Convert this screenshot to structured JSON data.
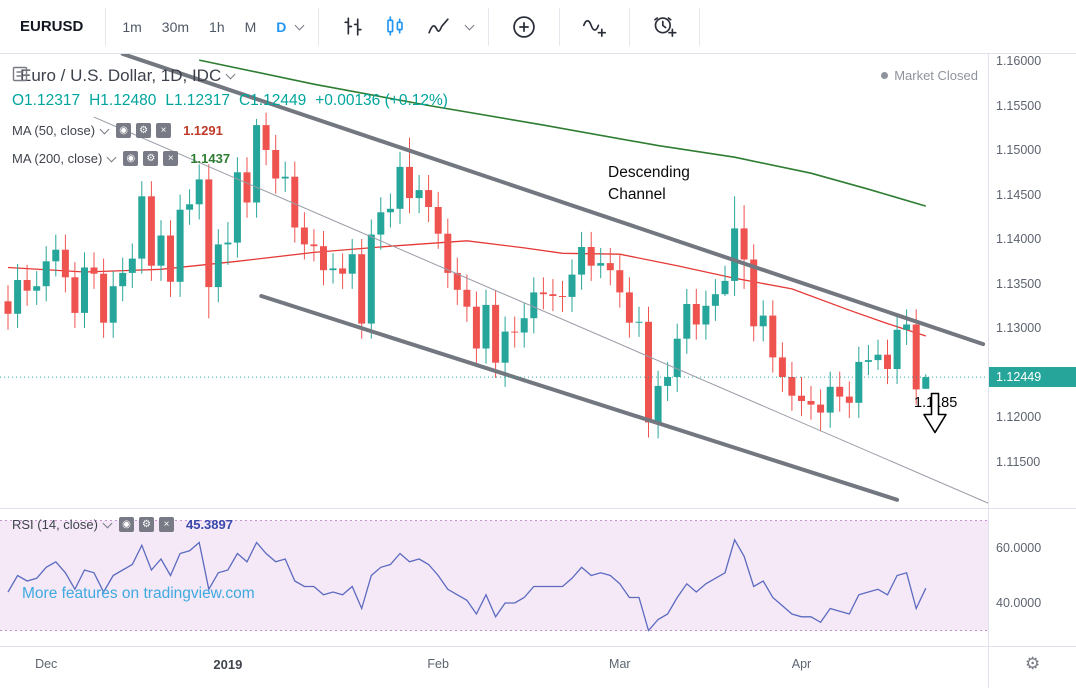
{
  "toolbar": {
    "symbol": "EURUSD",
    "intervals": [
      {
        "label": "1m"
      },
      {
        "label": "30m"
      },
      {
        "label": "1h"
      },
      {
        "label": "M"
      },
      {
        "label": "D",
        "active": true
      }
    ]
  },
  "legend": {
    "title": "Euro / U.S. Dollar, 1D, IDC",
    "ohlc": {
      "o": "O1.12317",
      "h": "H1.12480",
      "l": "L1.12317",
      "c": "C1.12449",
      "chg": "+0.00136 (+0.12%)"
    },
    "ma50": {
      "label": "MA (50, close)",
      "value": "1.1291"
    },
    "ma200": {
      "label": "MA (200, close)",
      "value": "1.1437"
    }
  },
  "status": {
    "market_closed": "Market Closed"
  },
  "annotations": {
    "channel": "Descending\nChannel",
    "target": "1.1185"
  },
  "watermark": "More features on tradingview.com",
  "rsi_legend": {
    "label": "RSI (14, close)",
    "value": "45.3897"
  },
  "icons": {
    "eye": "◉",
    "gear": "⚙",
    "close": "×",
    "settings_gear": "⚙"
  },
  "colors": {
    "up": "#26a69a",
    "down": "#ef5350",
    "ohlc_text": "#00a59d",
    "ma50": "#e53935",
    "ma200": "#2e7d32",
    "channel": "#73777f",
    "trendline": "#989ca6",
    "rsi": "#5c6bc0",
    "rsi_band": "rgba(156,39,176,0.10)",
    "rsi_level": "rgba(156,39,176,0.5)",
    "accent": "#2196f3",
    "tag_bg": "#26a69a"
  },
  "chart_data": {
    "type": "candlestick",
    "symbol": "EURUSD",
    "title": "Euro / U.S. Dollar, 1D, IDC",
    "interval": "1D",
    "price_ticks": [
      "1.16000",
      "1.15500",
      "1.15000",
      "1.14500",
      "1.14000",
      "1.13500",
      "1.13000",
      "1.12000",
      "1.11500"
    ],
    "current_price": 1.12449,
    "current_price_label": "1.12449",
    "price_range": [
      1.1098,
      1.1608
    ],
    "time_labels": [
      {
        "label": "Dec",
        "i": 4
      },
      {
        "label": "2019",
        "i": 23,
        "major": true
      },
      {
        "label": "Feb",
        "i": 45
      },
      {
        "label": "Mar",
        "i": 64
      },
      {
        "label": "Apr",
        "i": 83
      }
    ],
    "candles": [
      [
        1.133,
        1.1348,
        1.1298,
        1.1316
      ],
      [
        1.1316,
        1.1372,
        1.13,
        1.1354
      ],
      [
        1.1354,
        1.1371,
        1.1325,
        1.1342
      ],
      [
        1.1342,
        1.1364,
        1.1326,
        1.1347
      ],
      [
        1.1347,
        1.1392,
        1.133,
        1.1375
      ],
      [
        1.1375,
        1.1405,
        1.1358,
        1.1388
      ],
      [
        1.1388,
        1.1405,
        1.134,
        1.1357
      ],
      [
        1.1357,
        1.1374,
        1.13,
        1.1317
      ],
      [
        1.1317,
        1.1385,
        1.13,
        1.1368
      ],
      [
        1.1368,
        1.1385,
        1.1344,
        1.1361
      ],
      [
        1.1361,
        1.1378,
        1.1289,
        1.1306
      ],
      [
        1.1306,
        1.1364,
        1.1289,
        1.1347
      ],
      [
        1.1347,
        1.1379,
        1.133,
        1.1362
      ],
      [
        1.1362,
        1.1395,
        1.1345,
        1.1378
      ],
      [
        1.1378,
        1.1465,
        1.1361,
        1.1448
      ],
      [
        1.1448,
        1.1465,
        1.1353,
        1.137
      ],
      [
        1.137,
        1.1421,
        1.1353,
        1.1404
      ],
      [
        1.1404,
        1.1421,
        1.1335,
        1.1352
      ],
      [
        1.1352,
        1.145,
        1.1335,
        1.1433
      ],
      [
        1.1433,
        1.1456,
        1.1416,
        1.1439
      ],
      [
        1.1439,
        1.1484,
        1.1422,
        1.1467
      ],
      [
        1.1467,
        1.1484,
        1.1311,
        1.1346
      ],
      [
        1.1346,
        1.1411,
        1.1329,
        1.1394
      ],
      [
        1.1394,
        1.1419,
        1.1371,
        1.1396
      ],
      [
        1.1396,
        1.1492,
        1.1379,
        1.1475
      ],
      [
        1.1475,
        1.1492,
        1.1424,
        1.1441
      ],
      [
        1.1441,
        1.1535,
        1.1424,
        1.1528
      ],
      [
        1.1528,
        1.1542,
        1.1483,
        1.15
      ],
      [
        1.15,
        1.1517,
        1.1451,
        1.1468
      ],
      [
        1.1468,
        1.1487,
        1.1453,
        1.147
      ],
      [
        1.147,
        1.1487,
        1.1396,
        1.1413
      ],
      [
        1.1413,
        1.143,
        1.1377,
        1.1394
      ],
      [
        1.1394,
        1.1411,
        1.1375,
        1.1392
      ],
      [
        1.1392,
        1.1409,
        1.1348,
        1.1365
      ],
      [
        1.1365,
        1.1384,
        1.135,
        1.1367
      ],
      [
        1.1367,
        1.1384,
        1.1344,
        1.1361
      ],
      [
        1.1361,
        1.14,
        1.1344,
        1.1383
      ],
      [
        1.1383,
        1.14,
        1.1288,
        1.1305
      ],
      [
        1.1305,
        1.1422,
        1.1288,
        1.1405
      ],
      [
        1.1405,
        1.1447,
        1.1388,
        1.143
      ],
      [
        1.143,
        1.1451,
        1.1413,
        1.1434
      ],
      [
        1.1434,
        1.1498,
        1.1417,
        1.1481
      ],
      [
        1.1481,
        1.1514,
        1.1429,
        1.1446
      ],
      [
        1.1446,
        1.1472,
        1.1429,
        1.1455
      ],
      [
        1.1455,
        1.1472,
        1.1419,
        1.1436
      ],
      [
        1.1436,
        1.1453,
        1.1389,
        1.1406
      ],
      [
        1.1406,
        1.1423,
        1.1345,
        1.1362
      ],
      [
        1.1362,
        1.1379,
        1.1326,
        1.1343
      ],
      [
        1.1343,
        1.136,
        1.1307,
        1.1324
      ],
      [
        1.1324,
        1.1341,
        1.126,
        1.1277
      ],
      [
        1.1277,
        1.1343,
        1.126,
        1.1326
      ],
      [
        1.1326,
        1.1343,
        1.1244,
        1.1261
      ],
      [
        1.1261,
        1.1313,
        1.1234,
        1.1296
      ],
      [
        1.1296,
        1.1313,
        1.1278,
        1.1295
      ],
      [
        1.1295,
        1.1328,
        1.1278,
        1.1311
      ],
      [
        1.1311,
        1.1357,
        1.1294,
        1.134
      ],
      [
        1.134,
        1.1357,
        1.1321,
        1.1338
      ],
      [
        1.1338,
        1.1355,
        1.1319,
        1.1336
      ],
      [
        1.1336,
        1.1353,
        1.1318,
        1.1335
      ],
      [
        1.1335,
        1.1377,
        1.1318,
        1.136
      ],
      [
        1.136,
        1.1408,
        1.1343,
        1.1391
      ],
      [
        1.1391,
        1.1408,
        1.1353,
        1.137
      ],
      [
        1.137,
        1.139,
        1.1356,
        1.1373
      ],
      [
        1.1373,
        1.139,
        1.1348,
        1.1365
      ],
      [
        1.1365,
        1.1382,
        1.1323,
        1.134
      ],
      [
        1.134,
        1.1357,
        1.1289,
        1.1306
      ],
      [
        1.1306,
        1.1324,
        1.129,
        1.1307
      ],
      [
        1.1307,
        1.1324,
        1.1177,
        1.1194
      ],
      [
        1.1194,
        1.1252,
        1.1176,
        1.1235
      ],
      [
        1.1235,
        1.1262,
        1.1218,
        1.1245
      ],
      [
        1.1245,
        1.1305,
        1.1228,
        1.1288
      ],
      [
        1.1288,
        1.1344,
        1.1271,
        1.1327
      ],
      [
        1.1327,
        1.1344,
        1.1287,
        1.1304
      ],
      [
        1.1304,
        1.1342,
        1.1287,
        1.1325
      ],
      [
        1.1325,
        1.1355,
        1.1308,
        1.1338
      ],
      [
        1.1338,
        1.137,
        1.1336,
        1.1353
      ],
      [
        1.1353,
        1.1448,
        1.1336,
        1.1412
      ],
      [
        1.1412,
        1.1438,
        1.1344,
        1.1377
      ],
      [
        1.1377,
        1.1394,
        1.1285,
        1.1302
      ],
      [
        1.1302,
        1.1331,
        1.1285,
        1.1314
      ],
      [
        1.1314,
        1.1331,
        1.125,
        1.1267
      ],
      [
        1.1267,
        1.1284,
        1.1228,
        1.1245
      ],
      [
        1.1245,
        1.1262,
        1.1207,
        1.1224
      ],
      [
        1.1224,
        1.1245,
        1.1201,
        1.1218
      ],
      [
        1.1218,
        1.1235,
        1.1197,
        1.1214
      ],
      [
        1.1214,
        1.1231,
        1.1184,
        1.1205
      ],
      [
        1.1205,
        1.1251,
        1.1188,
        1.1234
      ],
      [
        1.1234,
        1.1251,
        1.1206,
        1.1223
      ],
      [
        1.1223,
        1.124,
        1.1199,
        1.1216
      ],
      [
        1.1216,
        1.1279,
        1.1199,
        1.1262
      ],
      [
        1.1262,
        1.1281,
        1.1247,
        1.1264
      ],
      [
        1.1264,
        1.1287,
        1.1253,
        1.127
      ],
      [
        1.127,
        1.1287,
        1.1237,
        1.1254
      ],
      [
        1.1254,
        1.1315,
        1.1237,
        1.1298
      ],
      [
        1.1298,
        1.1321,
        1.1281,
        1.1304
      ],
      [
        1.1304,
        1.1321,
        1.1214,
        1.1231
      ],
      [
        1.12317,
        1.1248,
        1.12317,
        1.12449
      ]
    ],
    "ma50_points": [
      [
        0,
        1.1368
      ],
      [
        8,
        1.1363
      ],
      [
        16,
        1.1366
      ],
      [
        24,
        1.1375
      ],
      [
        32,
        1.1385
      ],
      [
        40,
        1.1392
      ],
      [
        48,
        1.1398
      ],
      [
        54,
        1.139
      ],
      [
        58,
        1.1384
      ],
      [
        64,
        1.1383
      ],
      [
        70,
        1.137
      ],
      [
        76,
        1.1356
      ],
      [
        82,
        1.1344
      ],
      [
        88,
        1.132
      ],
      [
        92,
        1.1305
      ],
      [
        96,
        1.1291
      ]
    ],
    "ma200_points": [
      [
        20,
        1.1601
      ],
      [
        32,
        1.1574
      ],
      [
        44,
        1.155
      ],
      [
        56,
        1.1528
      ],
      [
        68,
        1.1505
      ],
      [
        76,
        1.1492
      ],
      [
        84,
        1.1474
      ],
      [
        90,
        1.1456
      ],
      [
        96,
        1.1437
      ]
    ],
    "drawings": {
      "channel_upper": [
        [
          12,
          1.1608
        ],
        [
          102,
          1.1282
        ]
      ],
      "channel_lower": [
        [
          26.5,
          1.1336
        ],
        [
          93,
          1.1107
        ]
      ],
      "trendline": [
        [
          9,
          1.1537
        ],
        [
          103,
          1.1101
        ]
      ]
    },
    "rsi": {
      "name": "RSI (14, close)",
      "current": 45.3897,
      "ticks": [
        "60.0000",
        "40.0000"
      ],
      "levels": [
        70,
        30
      ],
      "range": [
        24,
        74
      ],
      "values": [
        44,
        50,
        48,
        49,
        53,
        55,
        51,
        45,
        52,
        51,
        44,
        50,
        52,
        54,
        61,
        52,
        56,
        50,
        58,
        59,
        62,
        45,
        51,
        52,
        58,
        55,
        62,
        58,
        55,
        56,
        48,
        46,
        46,
        43,
        44,
        43,
        46,
        38,
        50,
        53,
        54,
        58,
        55,
        56,
        54,
        50,
        45,
        43,
        41,
        36,
        43,
        35,
        40,
        40,
        42,
        46,
        46,
        46,
        46,
        49,
        53,
        50,
        51,
        50,
        47,
        42,
        42,
        30,
        34,
        36,
        42,
        47,
        44,
        47,
        49,
        51,
        63,
        57,
        46,
        48,
        42,
        39,
        36,
        35,
        35,
        33,
        38,
        37,
        36,
        43,
        44,
        45,
        43,
        50,
        51,
        38,
        45.39
      ]
    }
  }
}
